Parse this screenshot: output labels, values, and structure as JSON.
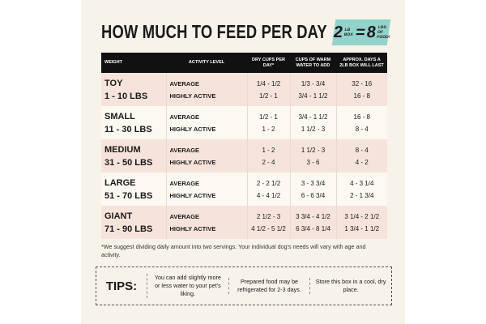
{
  "title": "HOW MUCH TO FEED PER DAY",
  "badge": {
    "lb": "2",
    "lb_unit": "LB BOX",
    "equals": "=",
    "food": "8",
    "food_unit": "LBS OF FOOD!"
  },
  "table": {
    "headers": [
      "WEIGHT",
      "ACTIVITY LEVEL",
      "DRY CUPS PER DAY*",
      "CUPS OF WARM WATER TO ADD",
      "APPROX. DAYS A 2LB BOX WILL LAST"
    ],
    "rows": [
      {
        "size": "TOY",
        "range": "1 - 10 LBS",
        "activity": [
          "AVERAGE",
          "HIGHLY ACTIVE"
        ],
        "dry": [
          "1/4 - 1/2",
          "1/2 - 1"
        ],
        "water": [
          "1/3 - 3/4",
          "3/4 - 1 1/2"
        ],
        "days": [
          "32 - 16",
          "16 - 8"
        ]
      },
      {
        "size": "SMALL",
        "range": "11 - 30 LBS",
        "activity": [
          "AVERAGE",
          "HIGHLY ACTIVE"
        ],
        "dry": [
          "1/2 - 1",
          "1 - 2"
        ],
        "water": [
          "3/4 - 1 1/2",
          "1 1/2 - 3"
        ],
        "days": [
          "16 - 8",
          "8 - 4"
        ]
      },
      {
        "size": "MEDIUM",
        "range": "31 - 50 LBS",
        "activity": [
          "AVERAGE",
          "HIGHLY ACTIVE"
        ],
        "dry": [
          "1 - 2",
          "2 - 4"
        ],
        "water": [
          "1 1/2 - 3",
          "3 - 6"
        ],
        "days": [
          "8 - 4",
          "4 - 2"
        ]
      },
      {
        "size": "LARGE",
        "range": "51 - 70 LBS",
        "activity": [
          "AVERAGE",
          "HIGHLY ACTIVE"
        ],
        "dry": [
          "2 - 2 1/2",
          "4 - 4 1/2"
        ],
        "water": [
          "3 - 3 3/4",
          "6 - 6 3/4"
        ],
        "days": [
          "4 - 3 1/4",
          "2 - 1 3/4"
        ]
      },
      {
        "size": "GIANT",
        "range": "71 - 90 LBS",
        "activity": [
          "AVERAGE",
          "HIGHLY ACTIVE"
        ],
        "dry": [
          "2 1/2 - 3",
          "4 1/2 - 5 1/2"
        ],
        "water": [
          "3 3/4 - 4 1/2",
          "6 3/4 - 8 1/4"
        ],
        "days": [
          "3 1/4 - 2 1/2",
          "1 3/4 - 1 1/2"
        ]
      }
    ]
  },
  "footnote": "*We suggest dividing daily amount into two servings. Your individual dog's needs will vary with age and activity.",
  "tips": {
    "label": "TIPS:",
    "items": [
      "You can add slightly more or less water to your pet's liking.",
      "Prepared food may be refrigerated for 2-3 days.",
      "Store this box in a cool, dry place."
    ]
  }
}
